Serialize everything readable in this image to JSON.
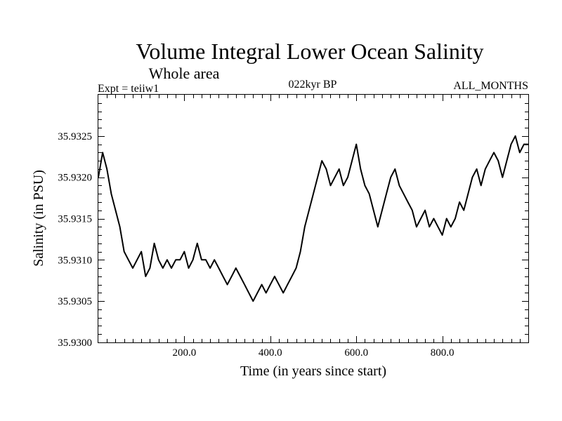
{
  "chart_data": {
    "type": "line",
    "title": "Volume Integral Lower Ocean Salinity",
    "subtitle": "Whole area",
    "experiment_label": "Expt = teiiw1",
    "period_label": "022kyr BP",
    "months_label": "ALL_MONTHS",
    "xlabel": "Time (in years since start)",
    "ylabel": "Salinity (in PSU)",
    "xlim": [
      0,
      1000
    ],
    "ylim": [
      35.93,
      35.933
    ],
    "x_ticks": [
      200,
      400,
      600,
      800
    ],
    "x_tick_labels": [
      "200.0",
      "400.0",
      "600.0",
      "800.0"
    ],
    "y_ticks": [
      35.93,
      35.9305,
      35.931,
      35.9315,
      35.932,
      35.9325
    ],
    "y_tick_labels": [
      "35.9300",
      "35.9305",
      "35.9310",
      "35.9315",
      "35.9320",
      "35.9325"
    ],
    "grid": false,
    "series_color": "#000000",
    "series": [
      {
        "x": [
          0,
          10,
          20,
          30,
          40,
          50,
          60,
          70,
          80,
          90,
          100,
          110,
          120,
          130,
          140,
          150,
          160,
          170,
          180,
          190,
          200,
          210,
          220,
          230,
          240,
          250,
          260,
          270,
          280,
          290,
          300,
          310,
          320,
          330,
          340,
          350,
          360,
          370,
          380,
          390,
          400,
          410,
          420,
          430,
          440,
          450,
          460,
          470,
          480,
          490,
          500,
          510,
          520,
          530,
          540,
          550,
          560,
          570,
          580,
          590,
          600,
          610,
          620,
          630,
          640,
          650,
          660,
          670,
          680,
          690,
          700,
          710,
          720,
          730,
          740,
          750,
          760,
          770,
          780,
          790,
          800,
          810,
          820,
          830,
          840,
          850,
          860,
          870,
          880,
          890,
          900,
          910,
          920,
          930,
          940,
          950,
          960,
          970,
          980,
          990,
          1000
        ],
        "values": [
          35.932,
          35.9323,
          35.9321,
          35.9318,
          35.9316,
          35.9314,
          35.9311,
          35.931,
          35.9309,
          35.931,
          35.9311,
          35.9308,
          35.9309,
          35.9312,
          35.931,
          35.9309,
          35.931,
          35.9309,
          35.931,
          35.931,
          35.9311,
          35.9309,
          35.931,
          35.9312,
          35.931,
          35.931,
          35.9309,
          35.931,
          35.9309,
          35.9308,
          35.9307,
          35.9308,
          35.9309,
          35.9308,
          35.9307,
          35.9306,
          35.9305,
          35.9306,
          35.9307,
          35.9306,
          35.9307,
          35.9308,
          35.9307,
          35.9306,
          35.9307,
          35.9308,
          35.9309,
          35.9311,
          35.9314,
          35.9316,
          35.9318,
          35.932,
          35.9322,
          35.9321,
          35.9319,
          35.932,
          35.9321,
          35.9319,
          35.932,
          35.9322,
          35.9324,
          35.9321,
          35.9319,
          35.9318,
          35.9316,
          35.9314,
          35.9316,
          35.9318,
          35.932,
          35.9321,
          35.9319,
          35.9318,
          35.9317,
          35.9316,
          35.9314,
          35.9315,
          35.9316,
          35.9314,
          35.9315,
          35.9314,
          35.9313,
          35.9315,
          35.9314,
          35.9315,
          35.9317,
          35.9316,
          35.9318,
          35.932,
          35.9321,
          35.9319,
          35.9321,
          35.9322,
          35.9323,
          35.9322,
          35.932,
          35.9322,
          35.9324,
          35.9325,
          35.9323,
          35.9324,
          35.9324
        ]
      }
    ]
  }
}
